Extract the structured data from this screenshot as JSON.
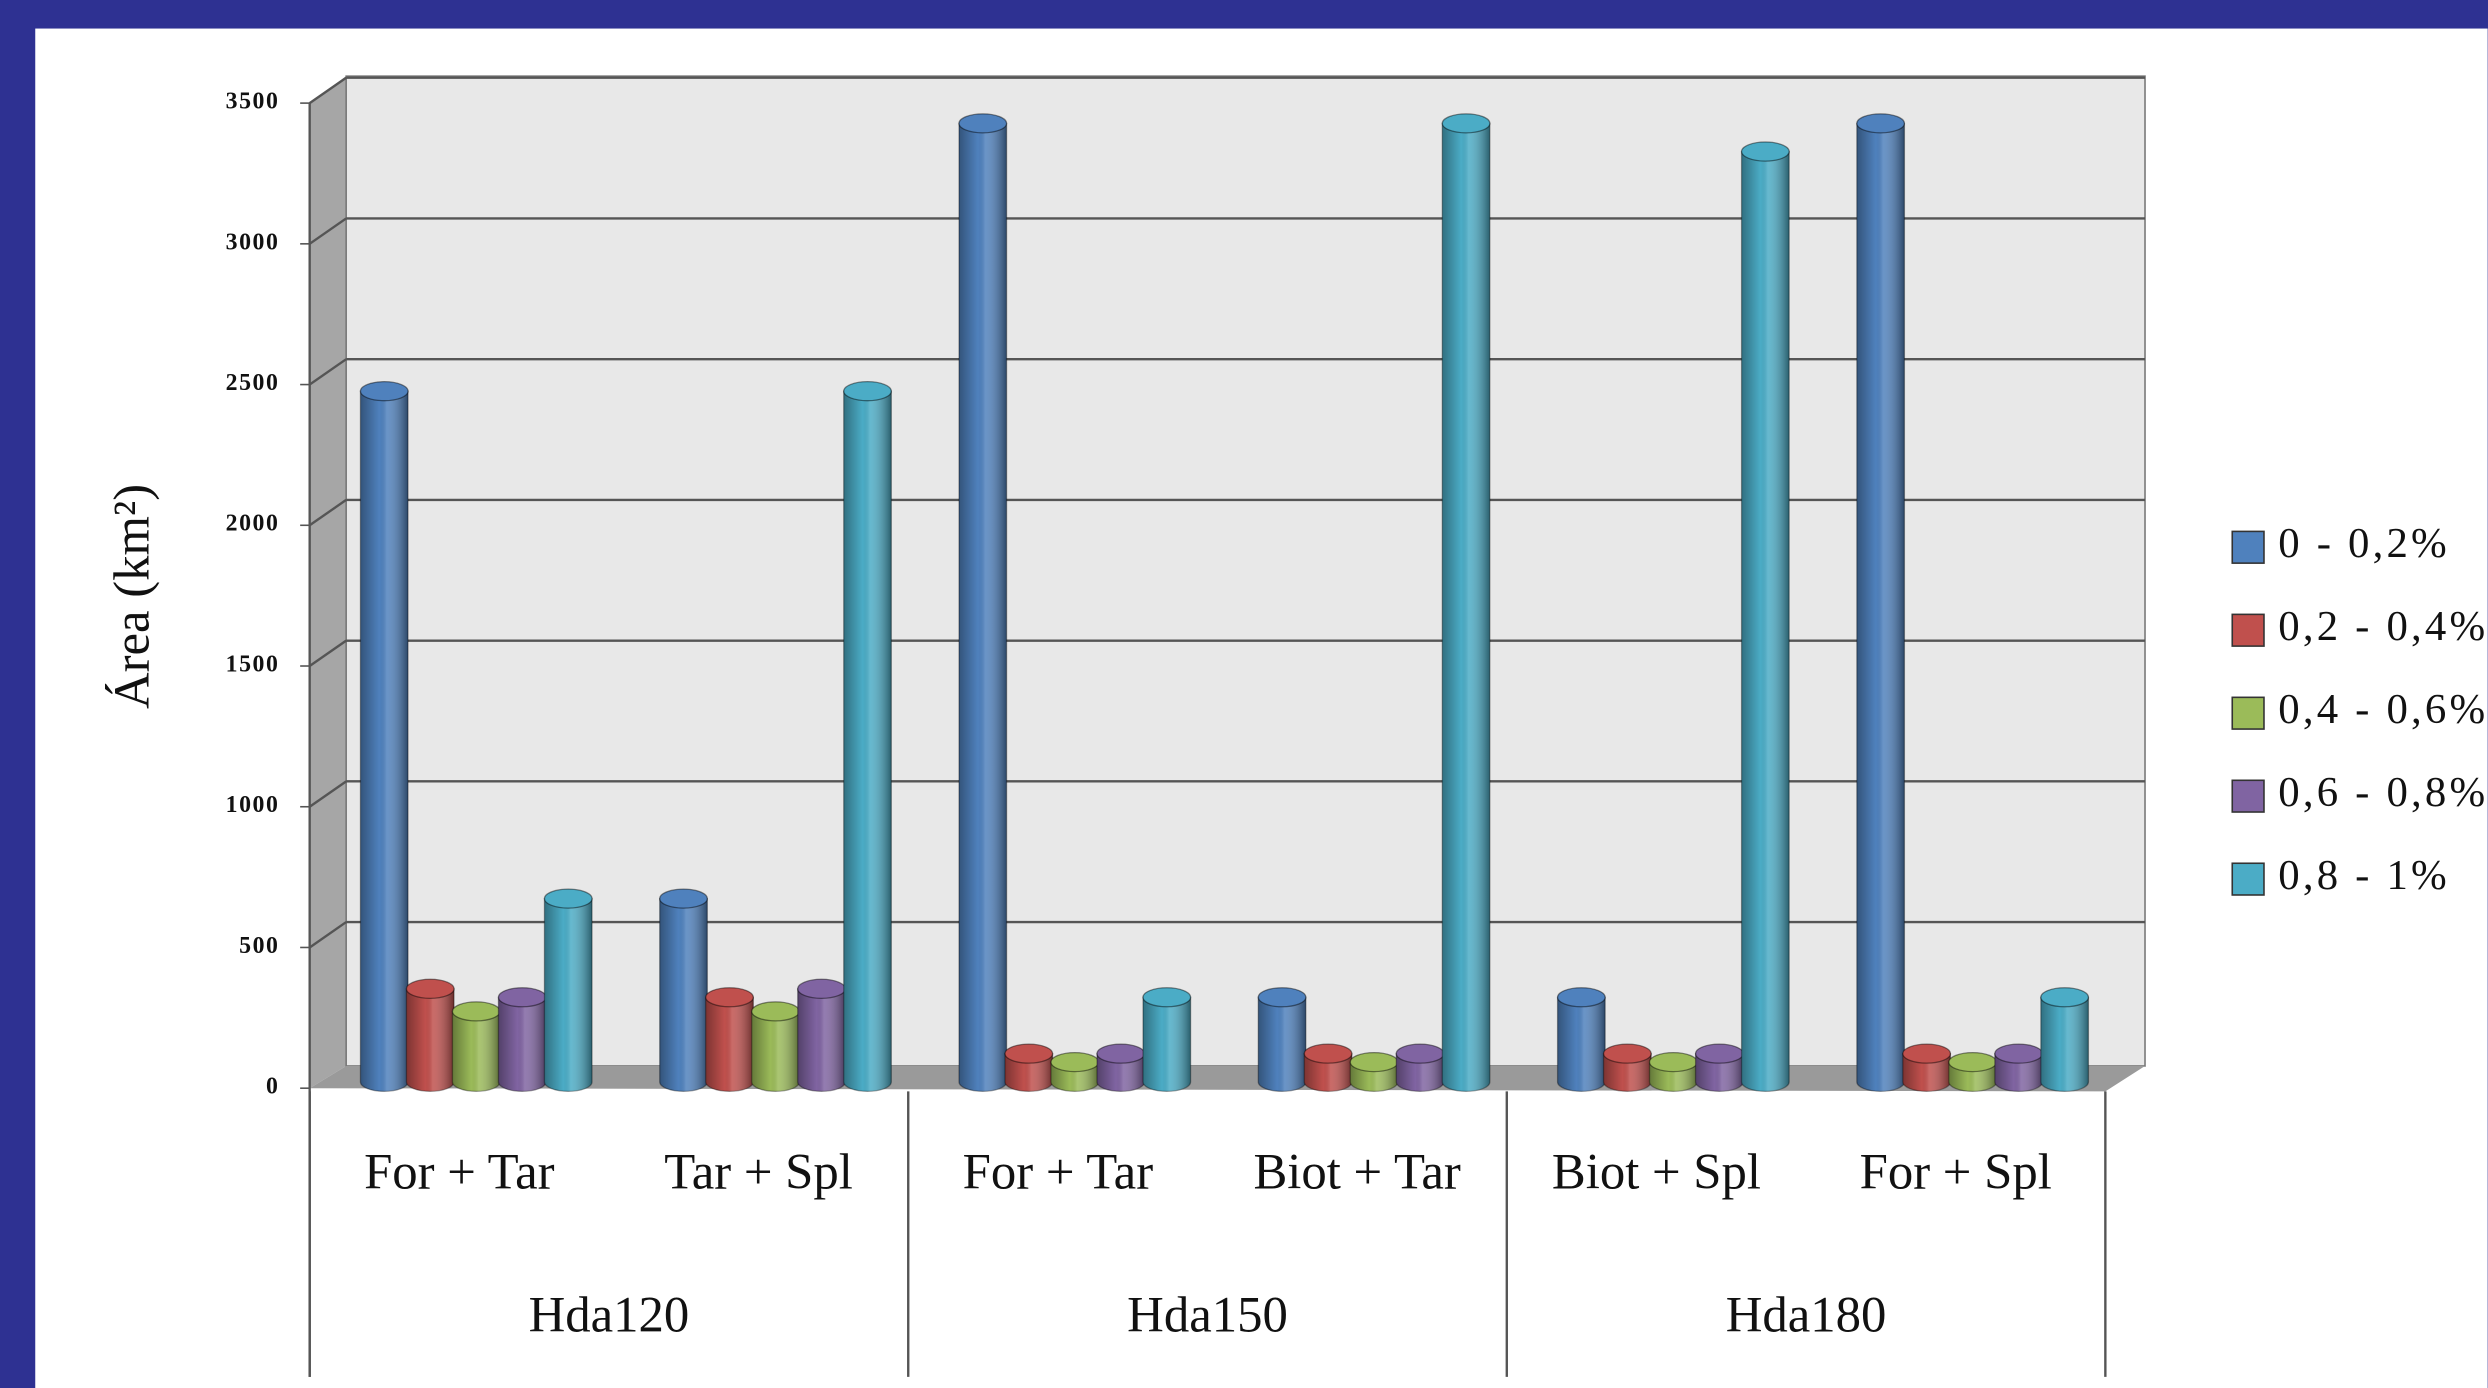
{
  "chart_data": {
    "type": "bar3d",
    "y_label": "Área (km²)",
    "categories": [
      "For + Tar",
      "Tar + Spl",
      "For + Tar",
      "Biot + Tar",
      "Biot + Spl",
      "For + Spl"
    ],
    "group_labels": [
      "Hda120",
      "Hda150",
      "Hda180"
    ],
    "series": [
      {
        "name": "0 - 0,2%",
        "color": "#4f81bd",
        "values": [
          2450,
          650,
          3400,
          300,
          300,
          3400
        ]
      },
      {
        "name": "0,2 - 0,4%",
        "color": "#c0504d",
        "values": [
          330,
          300,
          100,
          100,
          100,
          100
        ]
      },
      {
        "name": "0,4 - 0,6%",
        "color": "#9bbb59",
        "values": [
          250,
          250,
          70,
          70,
          70,
          70
        ]
      },
      {
        "name": "0,6 - 0,8%",
        "color": "#8064a2",
        "values": [
          300,
          330,
          100,
          100,
          100,
          100
        ]
      },
      {
        "name": "0,8 - 1%",
        "color": "#4bacc6",
        "values": [
          650,
          2450,
          300,
          3400,
          3300,
          300
        ]
      }
    ],
    "ylim": [
      0,
      3500
    ],
    "yticks": [
      0,
      500,
      1000,
      1500,
      2000,
      2500,
      3000,
      3500
    ],
    "grid": true,
    "legend": "right"
  }
}
